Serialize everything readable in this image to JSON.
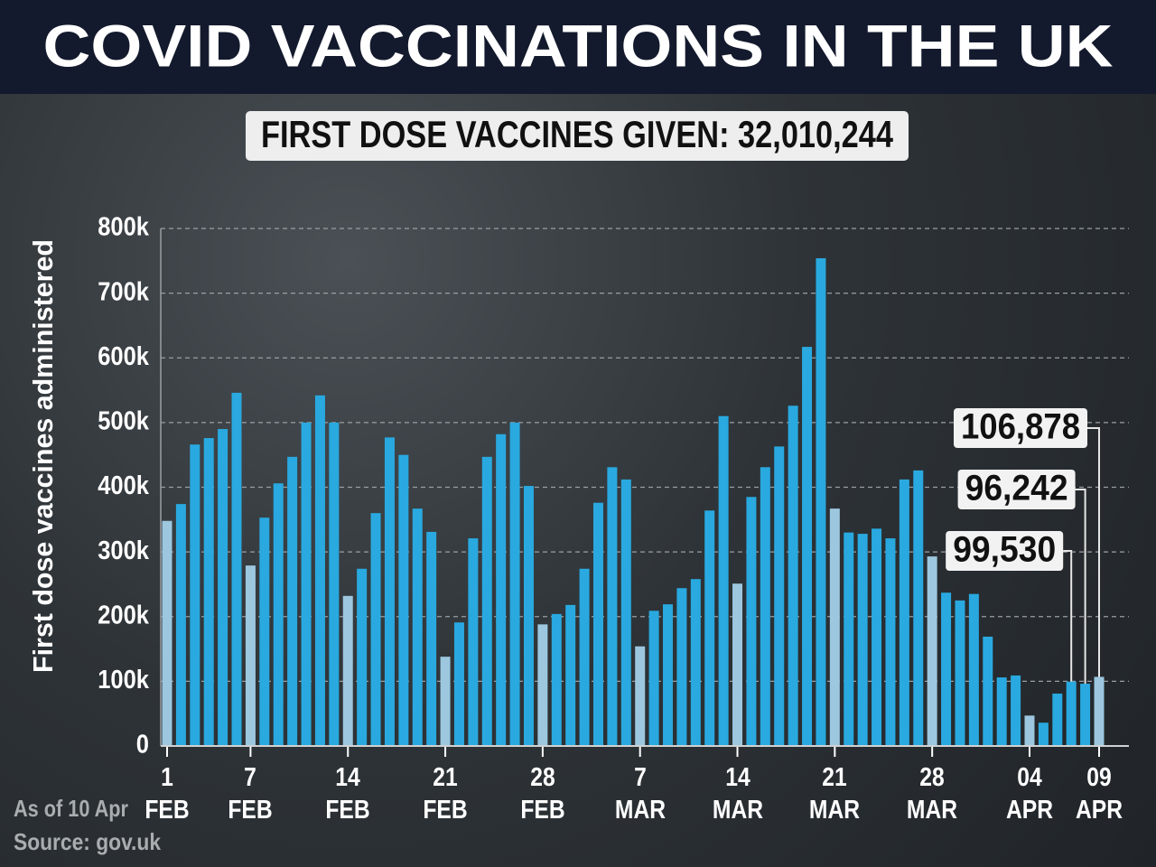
{
  "chart_data": {
    "type": "bar",
    "title": "COVID VACCINATIONS IN THE UK",
    "subtitle": "FIRST DOSE VACCINES GIVEN: 32,010,244",
    "y_label": "First dose vaccines administered",
    "footnote": "As of 10 Apr",
    "source": "Source: gov.uk",
    "categories": [
      "1\nFEB",
      null,
      null,
      null,
      null,
      null,
      "7\nFEB",
      null,
      null,
      null,
      null,
      null,
      null,
      "14\nFEB",
      null,
      null,
      null,
      null,
      null,
      null,
      "21\nFEB",
      null,
      null,
      null,
      null,
      null,
      null,
      "28\nFEB",
      null,
      null,
      null,
      null,
      null,
      null,
      "7\nMAR",
      null,
      null,
      null,
      null,
      null,
      null,
      "14\nMAR",
      null,
      null,
      null,
      null,
      null,
      null,
      "21\nMAR",
      null,
      null,
      null,
      null,
      null,
      null,
      "28\nMAR",
      null,
      null,
      null,
      null,
      null,
      null,
      "04\nAPR",
      null,
      null,
      null,
      null,
      "09\nAPR"
    ],
    "values": [
      348000,
      374000,
      466000,
      476000,
      490000,
      546000,
      279000,
      353000,
      406000,
      447000,
      500000,
      542000,
      500000,
      232000,
      274000,
      360000,
      477000,
      450000,
      367000,
      331000,
      138000,
      191000,
      321000,
      447000,
      482000,
      500000,
      402000,
      188000,
      204000,
      218000,
      274000,
      376000,
      431000,
      412000,
      154000,
      209000,
      219000,
      244000,
      258000,
      364000,
      510000,
      251000,
      385000,
      431000,
      463000,
      526000,
      617000,
      754000,
      367000,
      330000,
      328000,
      336000,
      321000,
      412000,
      426000,
      293000,
      237000,
      225000,
      235000,
      169000,
      106000,
      109000,
      47000,
      36000,
      81000,
      99530,
      96242,
      106878
    ],
    "value_labels": [
      null,
      null,
      null,
      null,
      null,
      null,
      null,
      null,
      null,
      null,
      null,
      null,
      null,
      null,
      null,
      null,
      null,
      null,
      null,
      null,
      null,
      null,
      null,
      null,
      null,
      null,
      null,
      null,
      null,
      null,
      null,
      null,
      null,
      null,
      null,
      null,
      null,
      null,
      null,
      null,
      null,
      null,
      null,
      null,
      null,
      null,
      null,
      null,
      null,
      null,
      null,
      null,
      null,
      null,
      null,
      null,
      null,
      null,
      null,
      null,
      null,
      null,
      null,
      null,
      null,
      "99,530",
      "96,242",
      "106,878"
    ],
    "color": "#29a9df",
    "highlight_color": "#9cc7df",
    "ylim": [
      0,
      800000
    ],
    "yticks": [
      0,
      {
        "value": 100000,
        "label": "100k"
      },
      {
        "value": 200000,
        "label": "200k"
      },
      {
        "value": 300000,
        "label": "300k"
      },
      {
        "value": 400000,
        "label": "400k"
      },
      {
        "value": 500000,
        "label": "500k"
      },
      {
        "value": 600000,
        "label": "600k"
      },
      {
        "value": 700000,
        "label": "700k"
      },
      {
        "value": 800000,
        "label": "800k"
      }
    ],
    "grid": true
  }
}
